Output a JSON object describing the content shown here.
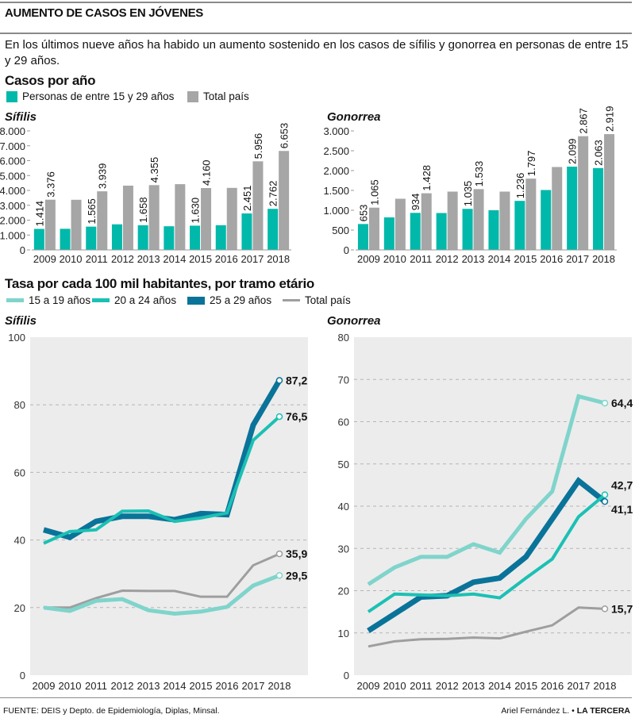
{
  "header": {
    "title": "AUMENTO DE CASOS EN JÓVENES",
    "intro": "En los últimos nueve años ha habido un aumento sostenido en los casos de sífilis y gonorrea en personas de entre 15 y 29 años."
  },
  "section_cases": {
    "title": "Casos por año",
    "legend": [
      {
        "label": "Personas de entre 15 y 29 años",
        "color": "#00b9aa"
      },
      {
        "label": "Total país",
        "color": "#a6a6a6"
      }
    ]
  },
  "section_rate": {
    "title": "Tasa por cada 100 mil habitantes, por  tramo etário",
    "legend": [
      {
        "label": "15 a 19 años",
        "color": "#7fd4cb"
      },
      {
        "label": "20 a 24 años",
        "color": "#1cc0b4"
      },
      {
        "label": "25 a 29 años",
        "color": "#0a7399"
      },
      {
        "label": "Total país",
        "color": "#9e9e9e"
      }
    ]
  },
  "footer": {
    "source": "FUENTE: DEIS y Depto. de Epidemiología, Diplas, Minsal.",
    "author": "Ariel Fernández L. •",
    "outlet": "LA TERCERA"
  },
  "chart_data": [
    {
      "id": "syph_cases",
      "type": "bar",
      "title": "Sífilis",
      "categories": [
        "2009",
        "2010",
        "2011",
        "2012",
        "2013",
        "2014",
        "2015",
        "2016",
        "2017",
        "2018"
      ],
      "ylim": [
        0,
        8000
      ],
      "yticks": [
        0,
        1000,
        2000,
        3000,
        4000,
        5000,
        6000,
        7000,
        8000
      ],
      "ytick_labels": [
        "0",
        "1.000",
        "2.000",
        "3.000",
        "4.000",
        "5.000",
        "6.000",
        "7.000",
        "8.000"
      ],
      "series": [
        {
          "name": "Personas de entre 15 y 29 años",
          "color": "#00b9aa",
          "values": [
            1414,
            1420,
            1565,
            1720,
            1658,
            1590,
            1630,
            1660,
            2451,
            2762
          ],
          "labels": [
            "1.414",
            "",
            "1.565",
            "",
            "1.658",
            "",
            "1.630",
            "",
            "2.451",
            "2.762"
          ]
        },
        {
          "name": "Total país",
          "color": "#a6a6a6",
          "values": [
            3376,
            3370,
            3939,
            4320,
            4355,
            4420,
            4160,
            4170,
            5956,
            6653
          ],
          "labels": [
            "3.376",
            "",
            "3.939",
            "",
            "4.355",
            "",
            "4.160",
            "",
            "5.956",
            "6.653"
          ]
        }
      ]
    },
    {
      "id": "gono_cases",
      "type": "bar",
      "title": "Gonorrea",
      "categories": [
        "2009",
        "2010",
        "2011",
        "2012",
        "2013",
        "2014",
        "2015",
        "2016",
        "2017",
        "2018"
      ],
      "ylim": [
        0,
        3000
      ],
      "yticks": [
        0,
        500,
        1000,
        1500,
        2000,
        2500,
        3000
      ],
      "ytick_labels": [
        "0",
        "500",
        "1.000",
        "1.500",
        "2.000",
        "2.500",
        "3.000"
      ],
      "series": [
        {
          "name": "Personas de entre 15 y 29 años",
          "color": "#00b9aa",
          "values": [
            653,
            820,
            934,
            930,
            1035,
            1000,
            1236,
            1510,
            2099,
            2063
          ],
          "labels": [
            "653",
            "",
            "934",
            "",
            "1.035",
            "",
            "1.236",
            "",
            "2.099",
            "2.063"
          ]
        },
        {
          "name": "Total país",
          "color": "#a6a6a6",
          "values": [
            1065,
            1290,
            1428,
            1470,
            1533,
            1470,
            1797,
            2090,
            2867,
            2919
          ],
          "labels": [
            "1.065",
            "",
            "1.428",
            "",
            "1.533",
            "",
            "1.797",
            "",
            "2.867",
            "2.919"
          ]
        }
      ]
    },
    {
      "id": "syph_rate",
      "type": "line",
      "title": "Sífilis",
      "x": [
        "2009",
        "2010",
        "2011",
        "2012",
        "2013",
        "2014",
        "2015",
        "2016",
        "2017",
        "2018"
      ],
      "ylim": [
        0,
        100
      ],
      "yticks": [
        0,
        20,
        40,
        60,
        80,
        100
      ],
      "grid": true,
      "series": [
        {
          "name": "Total país",
          "color": "#9e9e9e",
          "width": 3,
          "values": [
            20.0,
            20.0,
            22.8,
            25.0,
            24.9,
            24.9,
            23.2,
            23.2,
            32.5,
            35.9
          ],
          "end_label": "35,9"
        },
        {
          "name": "15 a 19 años",
          "color": "#7fd4cb",
          "width": 5,
          "values": [
            20.0,
            19.0,
            22.0,
            22.5,
            19.2,
            18.2,
            18.8,
            20.2,
            26.5,
            29.5
          ],
          "end_label": "29,5"
        },
        {
          "name": "25 a 29 años",
          "color": "#0a7399",
          "width": 7,
          "values": [
            43.0,
            40.8,
            45.5,
            47.0,
            47.0,
            46.0,
            47.8,
            47.5,
            74.0,
            87.2
          ],
          "end_label": "87,2"
        },
        {
          "name": "20 a 24 años",
          "color": "#1cc0b4",
          "width": 4,
          "values": [
            39.0,
            42.5,
            43.0,
            48.5,
            48.6,
            45.5,
            46.5,
            48.0,
            69.5,
            76.5
          ],
          "end_label": "76,5"
        }
      ]
    },
    {
      "id": "gono_rate",
      "type": "line",
      "title": "Gonorrea",
      "x": [
        "2009",
        "2010",
        "2011",
        "2012",
        "2013",
        "2014",
        "2015",
        "2016",
        "2017",
        "2018"
      ],
      "ylim": [
        0,
        80
      ],
      "yticks": [
        0,
        10,
        20,
        30,
        40,
        50,
        60,
        70,
        80
      ],
      "grid": true,
      "series": [
        {
          "name": "Total país",
          "color": "#9e9e9e",
          "width": 3,
          "values": [
            6.8,
            8.0,
            8.5,
            8.6,
            8.9,
            8.7,
            10.3,
            11.8,
            16.0,
            15.7
          ],
          "end_label": "15,7"
        },
        {
          "name": "15 a 19 años",
          "color": "#7fd4cb",
          "width": 5,
          "values": [
            21.5,
            25.5,
            28.0,
            28.0,
            31.0,
            29.0,
            37.0,
            43.5,
            66.0,
            64.4
          ],
          "end_label": "64,4"
        },
        {
          "name": "25 a 29 años",
          "color": "#0a7399",
          "width": 7,
          "values": [
            10.5,
            14.5,
            18.5,
            18.8,
            22.0,
            23.0,
            28.0,
            37.0,
            46.0,
            41.1
          ],
          "end_label": "41,1"
        },
        {
          "name": "20 a 24 años",
          "color": "#1cc0b4",
          "width": 4,
          "values": [
            15.0,
            19.2,
            19.0,
            18.8,
            19.2,
            18.3,
            23.0,
            27.5,
            37.5,
            42.7
          ],
          "end_label": "42,7"
        }
      ]
    }
  ]
}
